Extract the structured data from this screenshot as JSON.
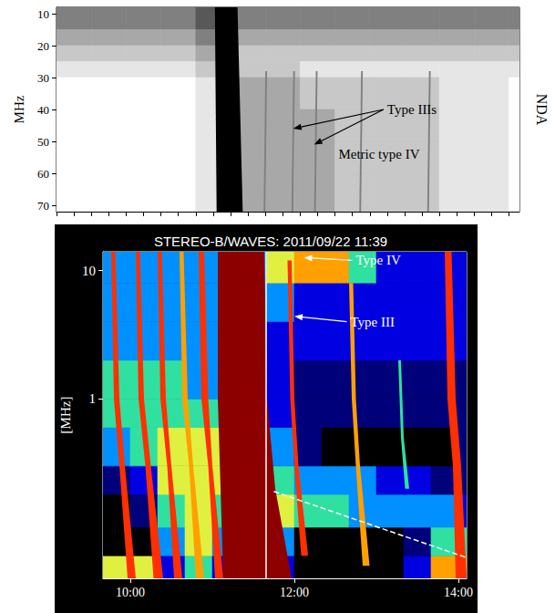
{
  "chart_data": [
    {
      "type": "spectrogram",
      "ylabel": "MHz",
      "ylabel_right": "NDA",
      "xlim": [
        580,
        846
      ],
      "xticks": [
        580,
        590,
        600,
        610,
        620,
        630,
        640,
        650,
        660,
        670,
        680,
        690,
        700,
        710,
        720,
        730,
        740,
        750,
        760,
        770,
        780,
        790,
        800,
        810,
        820,
        830,
        840
      ],
      "ylim": [
        72,
        8
      ],
      "yticks": [
        10,
        20,
        30,
        40,
        50,
        60,
        70
      ],
      "tick_labels": "y",
      "grid": false,
      "colors": [
        "#ffffff",
        "#e6e6e6",
        "#c8c8c8",
        "#a8a8a8",
        "#808080",
        "#585858",
        "#303030",
        "#000000"
      ],
      "t_edges": [
        580,
        600,
        620,
        640,
        660,
        680,
        700,
        720,
        740,
        760,
        780,
        800,
        820,
        840,
        860
      ],
      "f_edges": [
        8,
        15,
        20,
        25,
        30,
        40,
        50,
        60,
        72
      ],
      "levels": [
        [
          4,
          4,
          4,
          4,
          5,
          4,
          4,
          4,
          4,
          4,
          4,
          4,
          4,
          4
        ],
        [
          3,
          3,
          3,
          3,
          4,
          3,
          3,
          3,
          3,
          3,
          3,
          3,
          3,
          3
        ],
        [
          2,
          2,
          2,
          2,
          3,
          2,
          2,
          2,
          2,
          2,
          2,
          2,
          2,
          2
        ],
        [
          1,
          1,
          1,
          1,
          2,
          2,
          2,
          1,
          1,
          1,
          1,
          1,
          1,
          1
        ],
        [
          0,
          0,
          0,
          0,
          1,
          3,
          3,
          2,
          2,
          2,
          2,
          1,
          1,
          0
        ],
        [
          0,
          0,
          0,
          0,
          1,
          3,
          3,
          3,
          2,
          2,
          2,
          1,
          1,
          0
        ],
        [
          0,
          0,
          0,
          0,
          1,
          3,
          3,
          3,
          2,
          2,
          2,
          1,
          1,
          0
        ],
        [
          0,
          0,
          0,
          0,
          1,
          3,
          3,
          3,
          2,
          2,
          2,
          1,
          1,
          0
        ]
      ],
      "bursts": [
        {
          "level": 7,
          "points": [
            [
              671,
              8
            ],
            [
              684,
              8
            ],
            [
              687,
              72
            ],
            [
              672,
              72
            ]
          ]
        },
        {
          "level": 4,
          "points": [
            [
              700,
              28
            ],
            [
              701,
              28
            ],
            [
              700,
              72
            ],
            [
              699,
              72
            ]
          ]
        },
        {
          "level": 4,
          "points": [
            [
              716,
              28
            ],
            [
              717,
              28
            ],
            [
              716,
              72
            ],
            [
              715,
              72
            ]
          ]
        },
        {
          "level": 4,
          "points": [
            [
              729,
              28
            ],
            [
              730,
              28
            ],
            [
              729,
              72
            ],
            [
              728,
              72
            ]
          ]
        },
        {
          "level": 4,
          "points": [
            [
              755,
              28
            ],
            [
              756,
              28
            ],
            [
              755,
              72
            ],
            [
              754,
              72
            ]
          ]
        },
        {
          "level": 4,
          "points": [
            [
              794,
              28
            ],
            [
              795,
              28
            ],
            [
              794,
              72
            ],
            [
              793,
              72
            ]
          ]
        }
      ],
      "annotations": [
        {
          "text": "Type IIIs",
          "at": [
            770,
            40
          ],
          "arrows": [
            [
              716,
              46
            ],
            [
              728,
              51
            ]
          ]
        },
        {
          "text": "Metric type IV",
          "at": [
            742,
            54
          ],
          "arrows": []
        }
      ]
    },
    {
      "type": "spectrogram",
      "title": "STEREO-B/WAVES: 2011/09/22 11:39",
      "ylabel": "[MHz]",
      "log": "y",
      "xlim": [
        580,
        846
      ],
      "xticks": [
        {
          "value": 600,
          "label": "10:00"
        },
        {
          "value": 720,
          "label": "12:00"
        },
        {
          "value": 840,
          "label": "14:00"
        }
      ],
      "ylim": [
        0.04,
        14
      ],
      "yticks": [
        1,
        10
      ],
      "grid": false,
      "colors": [
        "#000000",
        "#00007a",
        "#0000e0",
        "#0090ff",
        "#30e0a0",
        "#e0f040",
        "#ffa000",
        "#ff3000",
        "#8c0000"
      ],
      "t_edges": [
        580,
        600,
        620,
        640,
        660,
        680,
        700,
        720,
        740,
        760,
        780,
        800,
        820,
        840,
        860
      ],
      "f_edges": [
        0.04,
        0.06,
        0.1,
        0.18,
        0.3,
        0.6,
        1,
        2,
        4,
        8,
        14
      ],
      "levels": [
        [
          5,
          5,
          2,
          4,
          2,
          3,
          2,
          0,
          0,
          0,
          0,
          2,
          6,
          6
        ],
        [
          0,
          0,
          3,
          5,
          3,
          4,
          3,
          0,
          0,
          0,
          0,
          1,
          4,
          4
        ],
        [
          0,
          1,
          4,
          5,
          4,
          5,
          5,
          4,
          4,
          3,
          3,
          3,
          3,
          2
        ],
        [
          1,
          2,
          5,
          5,
          5,
          5,
          4,
          3,
          3,
          3,
          2,
          2,
          1,
          1
        ],
        [
          3,
          4,
          5,
          5,
          5,
          4,
          3,
          1,
          0,
          0,
          0,
          0,
          0,
          1
        ],
        [
          4,
          4,
          4,
          4,
          4,
          3,
          2,
          1,
          1,
          1,
          1,
          1,
          1,
          1
        ],
        [
          4,
          4,
          4,
          3,
          3,
          3,
          2,
          1,
          1,
          1,
          1,
          1,
          1,
          1
        ],
        [
          3,
          3,
          3,
          3,
          3,
          3,
          2,
          2,
          2,
          2,
          2,
          2,
          2,
          2
        ],
        [
          3,
          3,
          3,
          3,
          3,
          3,
          3,
          2,
          2,
          2,
          2,
          2,
          2,
          2
        ],
        [
          3,
          3,
          3,
          3,
          3,
          3,
          5,
          6,
          6,
          4,
          2,
          2,
          2,
          2
        ]
      ],
      "bursts": [
        {
          "level": 8,
          "points": [
            [
              664,
              14
            ],
            [
              698,
              14
            ],
            [
              700,
              1
            ],
            [
              706,
              0.2
            ],
            [
              718,
              0.04
            ],
            [
              668,
              0.04
            ],
            [
              664,
              1
            ]
          ]
        },
        {
          "level": 7,
          "points": [
            [
              586,
              14
            ],
            [
              589,
              14
            ],
            [
              592,
              1
            ],
            [
              596,
              0.3
            ],
            [
              604,
              0.04
            ],
            [
              598,
              0.04
            ],
            [
              592,
              0.3
            ],
            [
              588,
              1
            ]
          ]
        },
        {
          "level": 7,
          "points": [
            [
              604,
              14
            ],
            [
              607,
              14
            ],
            [
              610,
              1
            ],
            [
              615,
              0.3
            ],
            [
              624,
              0.04
            ],
            [
              617,
              0.04
            ],
            [
              611,
              0.3
            ],
            [
              606,
              1
            ]
          ]
        },
        {
          "level": 7,
          "points": [
            [
              620,
              14
            ],
            [
              623,
              14
            ],
            [
              626,
              1
            ],
            [
              630,
              0.3
            ],
            [
              638,
              0.04
            ],
            [
              632,
              0.04
            ],
            [
              627,
              0.3
            ],
            [
              622,
              1
            ]
          ]
        },
        {
          "level": 6,
          "points": [
            [
              636,
              14
            ],
            [
              639,
              14
            ],
            [
              642,
              1
            ],
            [
              646,
              0.3
            ],
            [
              654,
              0.04
            ],
            [
              648,
              0.04
            ],
            [
              643,
              0.3
            ],
            [
              638,
              1
            ]
          ]
        },
        {
          "level": 7,
          "points": [
            [
              650,
              14
            ],
            [
              654,
              14
            ],
            [
              657,
              1
            ],
            [
              660,
              0.3
            ],
            [
              668,
              0.04
            ],
            [
              662,
              0.04
            ],
            [
              657,
              0.3
            ],
            [
              652,
              1
            ]
          ]
        },
        {
          "level": 7,
          "points": [
            [
              715,
              12
            ],
            [
              718,
              12
            ],
            [
              720,
              1
            ],
            [
              723,
              0.3
            ],
            [
              730,
              0.06
            ],
            [
              725,
              0.06
            ],
            [
              720,
              0.3
            ],
            [
              717,
              1
            ]
          ]
        },
        {
          "level": 6,
          "points": [
            [
              760,
              8
            ],
            [
              763,
              8
            ],
            [
              765,
              1
            ],
            [
              768,
              0.3
            ],
            [
              775,
              0.05
            ],
            [
              770,
              0.05
            ],
            [
              765,
              0.3
            ],
            [
              762,
              1
            ]
          ]
        },
        {
          "level": 4,
          "points": [
            [
              796,
              2
            ],
            [
              798,
              2
            ],
            [
              800,
              0.5
            ],
            [
              804,
              0.2
            ],
            [
              801,
              0.2
            ],
            [
              798,
              0.5
            ]
          ]
        },
        {
          "level": 7,
          "points": [
            [
              830,
              14
            ],
            [
              835,
              14
            ],
            [
              838,
              1
            ],
            [
              842,
              0.3
            ],
            [
              846,
              0.04
            ],
            [
              838,
              0.04
            ],
            [
              836,
              0.3
            ],
            [
              832,
              1
            ]
          ]
        }
      ],
      "cursor_time": 699,
      "dashed_line": [
        [
          705,
          0.19
        ],
        [
          846,
          0.058
        ]
      ],
      "annotations": [
        {
          "text": "Type IV",
          "at": [
            765,
            12
          ],
          "arrows": [
            [
              727,
              12.6
            ]
          ]
        },
        {
          "text": "Type III",
          "at": [
            761,
            4
          ],
          "arrows": [
            [
              720,
              4.4
            ]
          ]
        }
      ]
    }
  ]
}
